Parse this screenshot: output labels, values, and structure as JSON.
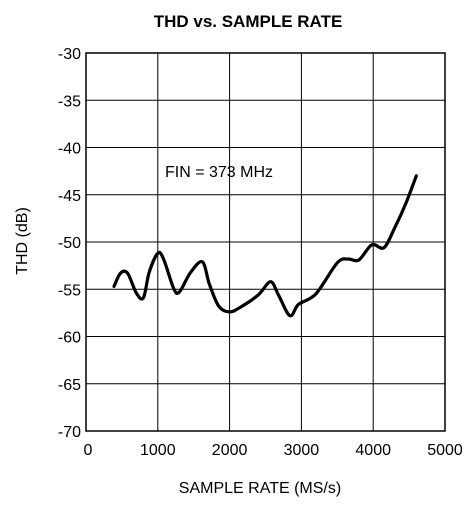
{
  "chart_data": {
    "type": "line",
    "title": "THD vs. SAMPLE RATE",
    "xlabel": "SAMPLE RATE (MS/s)",
    "ylabel": "THD (dB)",
    "xlim": [
      0,
      5000
    ],
    "ylim": [
      -70,
      -30
    ],
    "xticks": [
      0,
      1000,
      2000,
      3000,
      4000,
      5000
    ],
    "yticks": [
      -30,
      -35,
      -40,
      -45,
      -50,
      -55,
      -60,
      -65,
      -70
    ],
    "grid": true,
    "annotation": "FIN = 373 MHz",
    "series": [
      {
        "x": [
          390,
          480,
          580,
          700,
          800,
          880,
          1000,
          1080,
          1220,
          1300,
          1450,
          1620,
          1720,
          1850,
          2000,
          2150,
          2400,
          2570,
          2680,
          2840,
          2960,
          3200,
          3500,
          3650,
          3800,
          3980,
          4150,
          4300,
          4450,
          4600
        ],
        "y": [
          -54.7,
          -53.3,
          -53.3,
          -55.4,
          -55.9,
          -53.2,
          -51.2,
          -51.8,
          -54.9,
          -55.3,
          -53.3,
          -52.1,
          -54.5,
          -56.8,
          -57.4,
          -56.9,
          -55.6,
          -54.2,
          -55.6,
          -57.8,
          -56.6,
          -55.5,
          -52.2,
          -51.8,
          -51.9,
          -50.3,
          -50.6,
          -48.5,
          -46.0,
          -43.0
        ],
        "color": "#000000"
      }
    ]
  }
}
